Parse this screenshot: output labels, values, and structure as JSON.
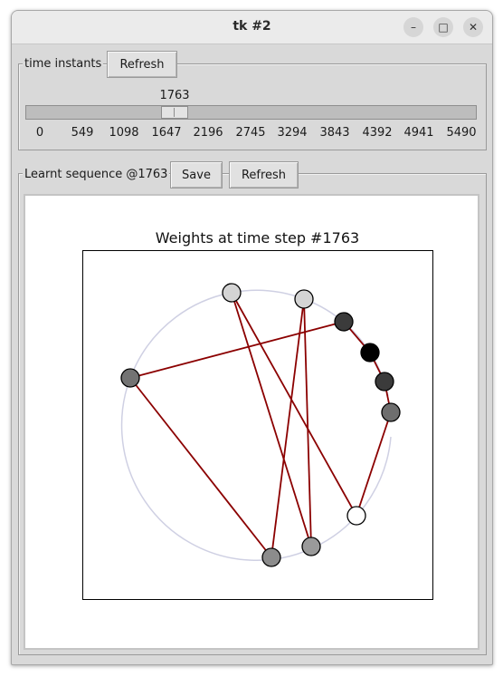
{
  "window": {
    "title": "tk #2"
  },
  "titlebar_buttons": {
    "minimize": "–",
    "maximize": "□",
    "close": "✕"
  },
  "time_panel": {
    "label": "time instants",
    "refresh_label": "Refresh",
    "slider": {
      "value": "1763",
      "min": 0,
      "max": 5490,
      "ticks": [
        "0",
        "549",
        "1098",
        "1647",
        "2196",
        "2745",
        "3294",
        "3843",
        "4392",
        "4941",
        "5490"
      ]
    }
  },
  "sequence_panel": {
    "label": "Learnt sequence @1763",
    "save_label": "Save",
    "refresh_label": "Refresh"
  },
  "plot": {
    "title": "Weights at time step #1763",
    "nodes": [
      {
        "shade": "#ffffff"
      },
      {
        "shade": "#9a9a9a"
      },
      {
        "shade": "#8c8c8c"
      },
      {
        "shade": "#737373"
      },
      {
        "shade": "#d4d4d4"
      },
      {
        "shade": "#d4d4d4"
      },
      {
        "shade": "#3b3b3b"
      },
      {
        "shade": "#000000"
      },
      {
        "shade": "#3b3b3b"
      },
      {
        "shade": "#6e6e6e"
      }
    ],
    "edges": [
      [
        4,
        0
      ],
      [
        4,
        1
      ],
      [
        5,
        2
      ],
      [
        5,
        1
      ],
      [
        6,
        3
      ],
      [
        3,
        2
      ],
      [
        6,
        7
      ],
      [
        7,
        8
      ],
      [
        8,
        9
      ],
      [
        9,
        0
      ]
    ],
    "edge_color": "#8b0000",
    "circle_color": "#cfd0e3"
  }
}
